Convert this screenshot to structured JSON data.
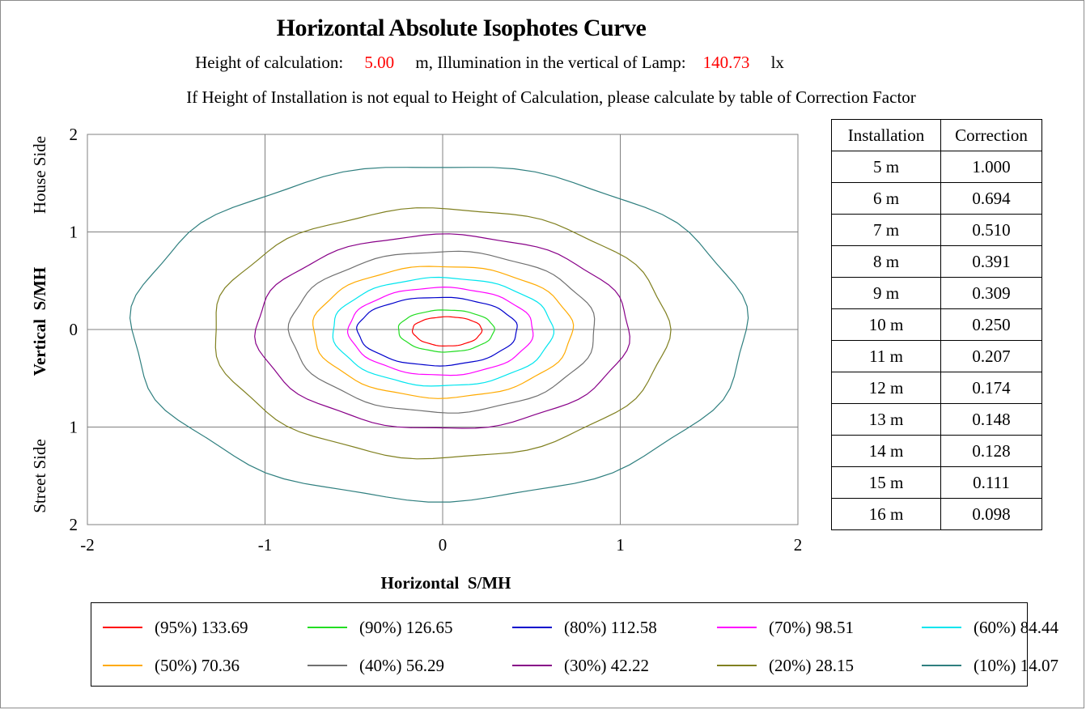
{
  "chart_data": {
    "type": "contour",
    "title": "Horizontal Absolute Isophotes Curve",
    "subtitle": {
      "calc_height_label": "Height of calculation:",
      "calc_height_value": "5.00",
      "calc_height_unit": "m, Illumination in the vertical of Lamp:",
      "illum_value": "140.73",
      "illum_unit": "lx"
    },
    "note": "If Height of Installation is not equal to Height of Calculation, please calculate by table of Correction Factor",
    "xlabel": "Horizontal  S/MH",
    "ylabel": "Vertical  S/MH",
    "y_side_labels": {
      "top": "House Side",
      "bottom": "Street Side"
    },
    "xlim": [
      -2,
      2
    ],
    "ylim": [
      -2,
      2
    ],
    "x_ticks": [
      "-2",
      "-1",
      "0",
      "1",
      "2"
    ],
    "y_ticks": [
      "2",
      "1",
      "0",
      "1",
      "2"
    ],
    "grid": true,
    "legend_position": "bottom",
    "series": [
      {
        "name": "(95%) 133.69",
        "color": "#ff0000",
        "extent": {
          "x_min": -0.17,
          "x_max": 0.22,
          "y_min": -0.17,
          "y_max": 0.13
        }
      },
      {
        "name": "(90%) 126.65",
        "color": "#22dd22",
        "extent": {
          "x_min": -0.25,
          "x_max": 0.29,
          "y_min": -0.23,
          "y_max": 0.2
        }
      },
      {
        "name": "(80%) 112.58",
        "color": "#0000cc",
        "extent": {
          "x_min": -0.48,
          "x_max": 0.42,
          "y_min": -0.37,
          "y_max": 0.33
        }
      },
      {
        "name": "(70%) 98.51",
        "color": "#ff00ff",
        "extent": {
          "x_min": -0.53,
          "x_max": 0.51,
          "y_min": -0.47,
          "y_max": 0.43
        }
      },
      {
        "name": "(60%) 84.44",
        "color": "#00e5ee",
        "extent": {
          "x_min": -0.62,
          "x_max": 0.62,
          "y_min": -0.58,
          "y_max": 0.53
        }
      },
      {
        "name": "(50%) 70.36",
        "color": "#ffaa00",
        "extent": {
          "x_min": -0.73,
          "x_max": 0.73,
          "y_min": -0.7,
          "y_max": 0.65
        }
      },
      {
        "name": "(40%) 56.29",
        "color": "#707070",
        "extent": {
          "x_min": -0.86,
          "x_max": 0.86,
          "y_min": -0.85,
          "y_max": 0.8
        }
      },
      {
        "name": "(30%) 42.22",
        "color": "#880088",
        "extent": {
          "x_min": -1.05,
          "x_max": 1.05,
          "y_min": -1.02,
          "y_max": 0.97
        }
      },
      {
        "name": "(20%) 28.15",
        "color": "#808020",
        "extent": {
          "x_min": -1.29,
          "x_max": 1.27,
          "y_min": -1.32,
          "y_max": 1.24
        }
      },
      {
        "name": "(10%) 14.07",
        "color": "#2f7f7f",
        "extent": {
          "x_min": -1.75,
          "x_max": 1.71,
          "y_min": -1.75,
          "y_max": 1.68
        }
      }
    ]
  },
  "correction_table": {
    "headers": [
      "Installation",
      "Correction"
    ],
    "rows": [
      [
        "5 m",
        "1.000"
      ],
      [
        "6 m",
        "0.694"
      ],
      [
        "7 m",
        "0.510"
      ],
      [
        "8 m",
        "0.391"
      ],
      [
        "9 m",
        "0.309"
      ],
      [
        "10 m",
        "0.250"
      ],
      [
        "11 m",
        "0.207"
      ],
      [
        "12 m",
        "0.174"
      ],
      [
        "13 m",
        "0.148"
      ],
      [
        "14 m",
        "0.128"
      ],
      [
        "15 m",
        "0.111"
      ],
      [
        "16 m",
        "0.098"
      ]
    ]
  }
}
